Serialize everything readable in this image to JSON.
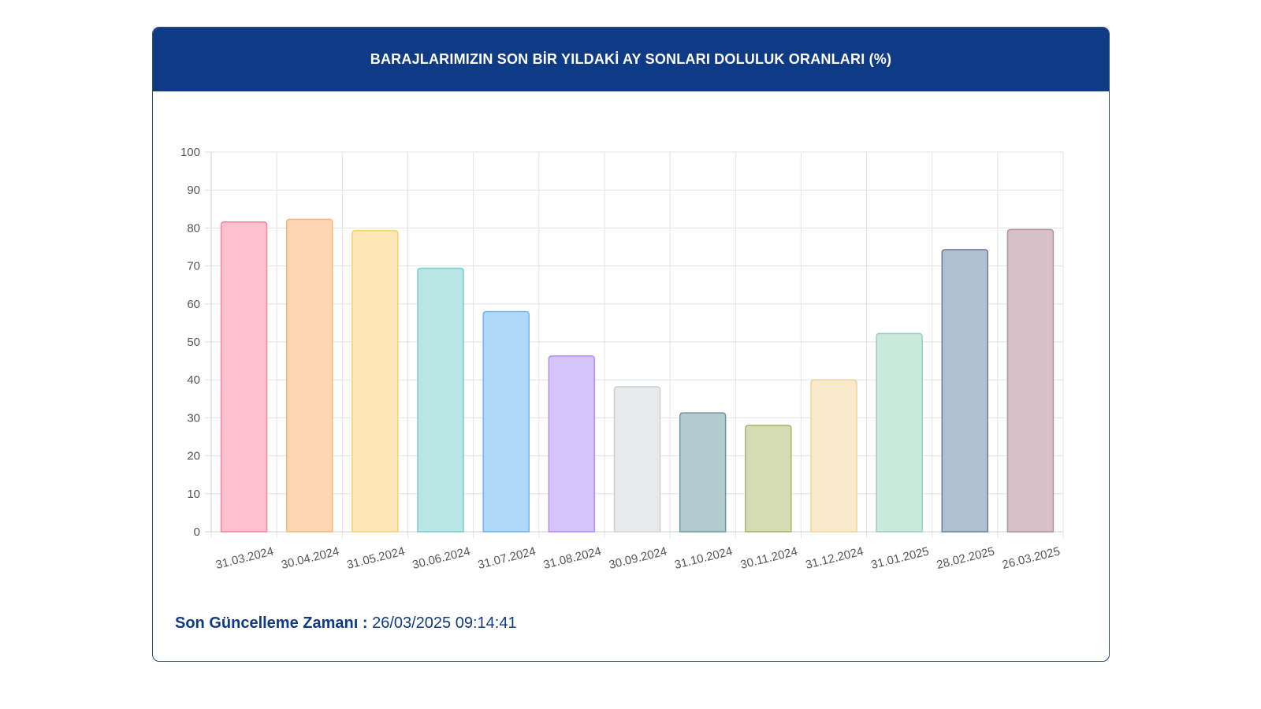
{
  "header": {
    "title": "BARAJLARIMIZIN SON BİR YILDAKİ AY SONLARI DOLULUK ORANLARI (%)"
  },
  "footer": {
    "label": "Son Güncelleme Zamanı :",
    "value": "26/03/2025 09:14:41"
  },
  "colors": {
    "header_bg": "#0f3a85",
    "text_accent": "#0f3a85"
  },
  "chart_data": {
    "type": "bar",
    "title": "BARAJLARIMIZIN SON BİR YILDAKİ AY SONLARI DOLULUK ORANLARI (%)",
    "xlabel": "",
    "ylabel": "",
    "ylim": [
      0,
      100
    ],
    "yticks": [
      0,
      10,
      20,
      30,
      40,
      50,
      60,
      70,
      80,
      90,
      100
    ],
    "grid": true,
    "legend": "none",
    "categories": [
      "31.03.2024",
      "30.04.2024",
      "31.05.2024",
      "30.06.2024",
      "31.07.2024",
      "31.08.2024",
      "30.09.2024",
      "31.10.2024",
      "30.11.2024",
      "31.12.2024",
      "31.01.2025",
      "28.02.2025",
      "26.03.2025"
    ],
    "values": [
      81.6,
      82.3,
      79.3,
      69.4,
      58.0,
      46.3,
      38.2,
      31.3,
      28.0,
      40.0,
      52.2,
      74.3,
      79.6
    ],
    "bar_fill": [
      "#fdc0cf",
      "#fdd7b2",
      "#fde7b9",
      "#b8e6e4",
      "#b0d8f8",
      "#d5c3fc",
      "#e8e9eb",
      "#b1cbcf",
      "#d5dcb2",
      "#f8eacb",
      "#cbe9dd",
      "#b1bfd3",
      "#d8c0c8"
    ],
    "bar_stroke": [
      "#f3859d",
      "#f5b57c",
      "#f5cf6e",
      "#76cdca",
      "#6fb6ee",
      "#b28ef3",
      "#cdd0d4",
      "#6f979d",
      "#a7b56d",
      "#efd492",
      "#96d2bb",
      "#6a7f9e",
      "#b48e9a"
    ]
  }
}
